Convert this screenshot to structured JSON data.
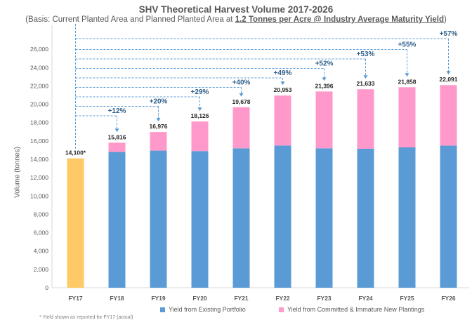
{
  "title": "SHV Theoretical Harvest Volume 2017-2026",
  "subtitle_prefix": "(Basis: Current Planted Area and Planned Planted Area at ",
  "subtitle_emphasis": "1.2 Tonnes per Acre @ Industry Average Maturity Yield",
  "subtitle_suffix": ")",
  "footnote": "* Yield shown as reported for FY17 (actual)",
  "colors": {
    "existing": "#5b9bd5",
    "new": "#ff99cc",
    "fy17": "#ffc966",
    "growth": "#2e5f8a",
    "axis_text": "#595959",
    "dashed": "#5b9bd5"
  },
  "chart_data": {
    "type": "bar",
    "stacked": true,
    "title": "SHV Theoretical Harvest Volume 2017-2026",
    "ylabel": "Volume (tonnes)",
    "xlabel": "",
    "ylim": [
      0,
      28000
    ],
    "yticks": [
      0,
      2000,
      4000,
      6000,
      8000,
      10000,
      12000,
      14000,
      16000,
      18000,
      20000,
      22000,
      24000,
      26000
    ],
    "categories": [
      "FY17",
      "FY18",
      "FY19",
      "FY20",
      "FY21",
      "FY22",
      "FY23",
      "FY24",
      "FY25",
      "FY26"
    ],
    "series": [
      {
        "name": "Yield from Existing Portfolio",
        "values": [
          14100,
          14800,
          14950,
          14900,
          15200,
          15500,
          15200,
          15150,
          15300,
          15500
        ]
      },
      {
        "name": "Yield from Committed & Immature New Plantings",
        "values": [
          0,
          1016,
          2026,
          3226,
          4478,
          5453,
          6196,
          6483,
          6558,
          6591
        ]
      }
    ],
    "totals": [
      "14,100*",
      "15,816",
      "16,976",
      "18,126",
      "19,678",
      "20,953",
      "21,396",
      "21,633",
      "21,858",
      "22,091"
    ],
    "growth_labels": [
      "",
      "+12%",
      "+20%",
      "+29%",
      "+40%",
      "+49%",
      "+52%",
      "+53%",
      "+55%",
      "+57%"
    ],
    "legend_position": "bottom",
    "grid": false
  }
}
